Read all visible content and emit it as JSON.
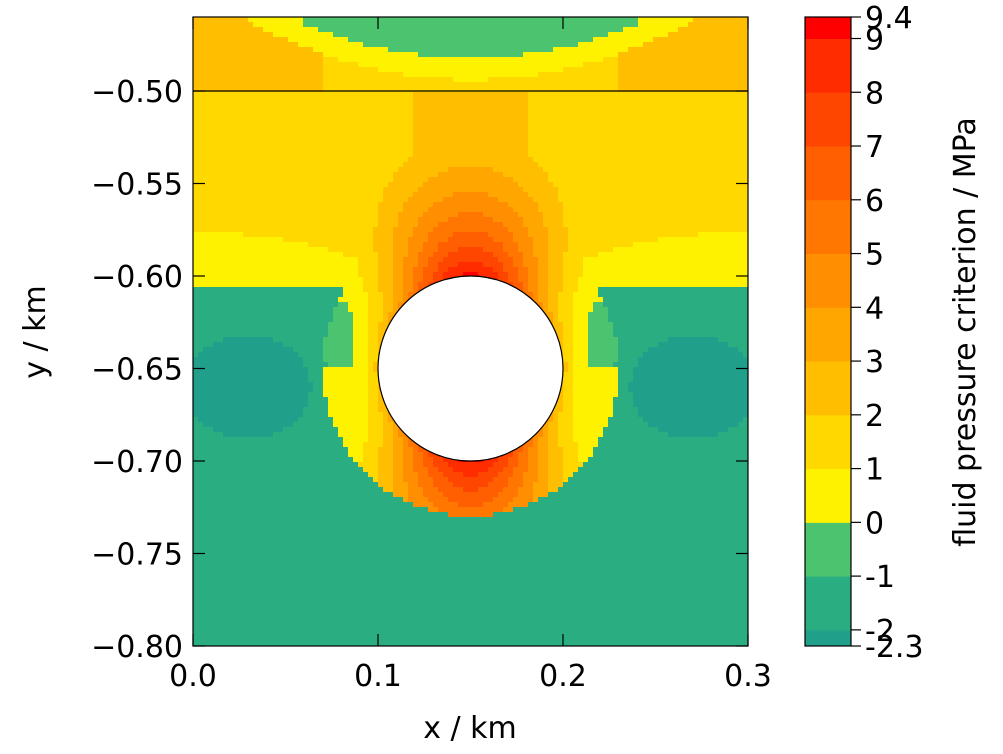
{
  "chart_data": {
    "type": "heatmap",
    "subtype": "filled-contour",
    "title": "",
    "xlabel": "x / km",
    "ylabel": "y / km",
    "xlim": [
      0.0,
      0.3
    ],
    "ylim": [
      -0.8,
      -0.46
    ],
    "x_ticks": [
      0.0,
      0.1,
      0.2,
      0.3
    ],
    "x_tick_labels": [
      "0.0",
      "0.1",
      "0.2",
      "0.3"
    ],
    "y_ticks": [
      -0.5,
      -0.55,
      -0.6,
      -0.65,
      -0.7,
      -0.75,
      -0.8
    ],
    "y_tick_labels": [
      "−0.50",
      "−0.55",
      "−0.60",
      "−0.65",
      "−0.70",
      "−0.75",
      "−0.80"
    ],
    "grid": false,
    "colorbar": {
      "label": "fluid pressure criterion / MPa",
      "min": -2.3,
      "max": 9.4,
      "boundaries": [
        -2.3,
        -2,
        -1,
        0,
        1,
        2,
        3,
        4,
        5,
        6,
        7,
        8,
        9,
        9.4
      ],
      "tick_labels": [
        "-2.3",
        "-2",
        "-1",
        "0",
        "1",
        "2",
        "3",
        "4",
        "5",
        "6",
        "7",
        "8",
        "9",
        "9.4"
      ],
      "colors": [
        "#20a08a",
        "#2aad80",
        "#4cc46f",
        "#fff200",
        "#ffd800",
        "#ffbf00",
        "#ffa700",
        "#ff8f00",
        "#ff7700",
        "#ff5f00",
        "#ff4600",
        "#ff2c00",
        "#ff0000"
      ]
    },
    "annotations": {
      "horizontal_line_y": -0.5,
      "cavity": {
        "center_x": 0.15,
        "center_y": -0.65,
        "radius": 0.05
      }
    },
    "field_description": {
      "max_near": "top and bottom of cavity (~9.4 MPa)",
      "min_near": "lateral zones left and right of cavity (~-2.3 MPa)"
    }
  }
}
